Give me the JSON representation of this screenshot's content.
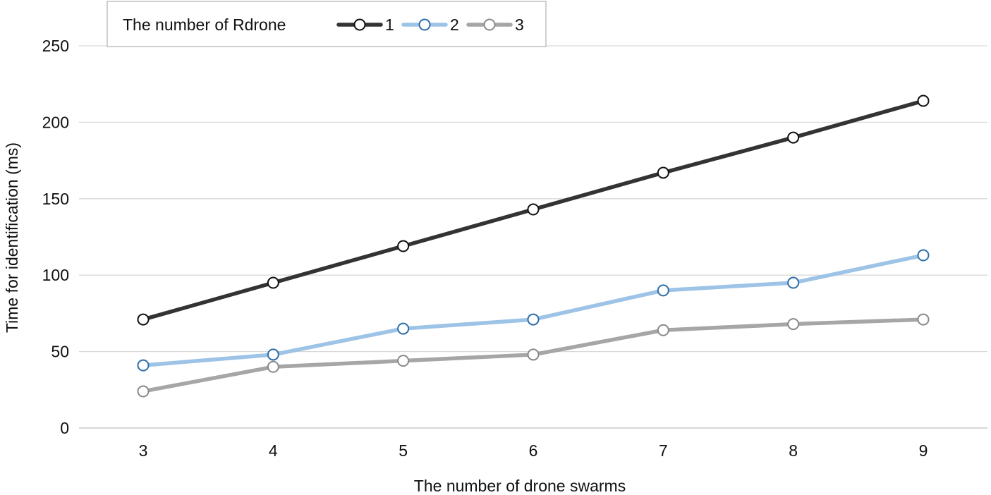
{
  "chart_data": {
    "type": "line",
    "title": "",
    "xlabel": "The number of drone swarms",
    "ylabel": "Time for identification (ms)",
    "x": [
      3,
      4,
      5,
      6,
      7,
      8,
      9
    ],
    "ylim": [
      0,
      250
    ],
    "yticks": [
      0,
      50,
      100,
      150,
      200,
      250
    ],
    "grid": true,
    "legend_title": "The number of Rdrone",
    "legend_position": "top",
    "series": [
      {
        "name": "1",
        "color": "#333333",
        "marker_stroke": "#111111",
        "values": [
          71,
          95,
          119,
          143,
          167,
          190,
          214
        ]
      },
      {
        "name": "2",
        "color": "#9dc3e6",
        "marker_stroke": "#2e6ea8",
        "values": [
          41,
          48,
          65,
          71,
          90,
          95,
          113
        ]
      },
      {
        "name": "3",
        "color": "#a6a6a6",
        "marker_stroke": "#8a8a8a",
        "values": [
          24,
          40,
          44,
          48,
          64,
          68,
          71
        ]
      }
    ]
  }
}
